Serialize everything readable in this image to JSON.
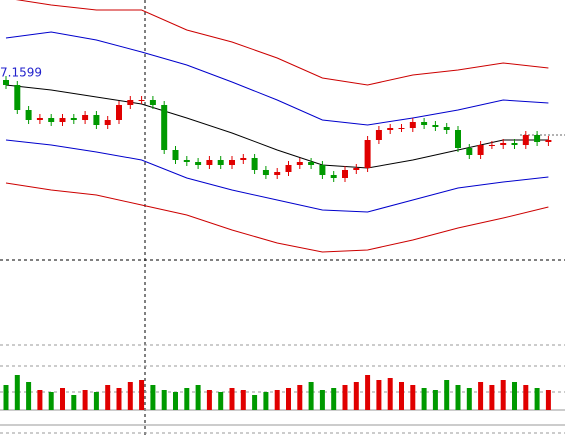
{
  "chart_data": {
    "type": "candlestick",
    "price_label": "7.1599",
    "up_color": "#e00000",
    "down_color": "#009900",
    "ylim": [
      6.9729,
      7.2329
    ],
    "open": [
      7.1529,
      7.1479,
      7.1229,
      7.1129,
      7.1149,
      7.1109,
      7.1149,
      7.1129,
      7.1179,
      7.1079,
      7.1129,
      7.1279,
      7.1329,
      7.1329,
      7.1279,
      7.0829,
      7.0729,
      7.0709,
      7.0679,
      7.0729,
      7.0679,
      7.0729,
      7.0749,
      7.0629,
      7.0579,
      7.0609,
      7.0679,
      7.0709,
      7.0679,
      7.0579,
      7.0549,
      7.0629,
      7.0649,
      7.0929,
      7.1029,
      7.1049,
      7.1049,
      7.1109,
      7.1079,
      7.1059,
      7.1029,
      7.0849,
      7.0779,
      7.0879,
      7.0879,
      7.0899,
      7.0879,
      7.0979,
      7.0909
    ],
    "high": [
      7.1569,
      7.1519,
      7.1269,
      7.1189,
      7.1189,
      7.1189,
      7.1189,
      7.1219,
      7.1219,
      7.1169,
      7.1319,
      7.1369,
      7.1369,
      7.1369,
      7.1319,
      7.0869,
      7.0769,
      7.0749,
      7.0769,
      7.0769,
      7.0769,
      7.0789,
      7.0789,
      7.0669,
      7.0649,
      7.0719,
      7.0749,
      7.0749,
      7.0719,
      7.0619,
      7.0669,
      7.0689,
      7.0969,
      7.1069,
      7.1089,
      7.1089,
      7.1149,
      7.1149,
      7.1119,
      7.1099,
      7.1069,
      7.0889,
      7.0919,
      7.0919,
      7.0939,
      7.0939,
      7.1019,
      7.1019,
      7.0969
    ],
    "low": [
      7.1439,
      7.1189,
      7.1089,
      7.1089,
      7.1069,
      7.1069,
      7.1089,
      7.1089,
      7.1039,
      7.1039,
      7.1089,
      7.1239,
      7.1289,
      7.1239,
      7.0789,
      7.0689,
      7.0669,
      7.0639,
      7.0639,
      7.0639,
      7.0639,
      7.0689,
      7.0589,
      7.0539,
      7.0539,
      7.0569,
      7.0639,
      7.0639,
      7.0539,
      7.0509,
      7.0509,
      7.0589,
      7.0609,
      7.0889,
      7.0989,
      7.1009,
      7.1009,
      7.1039,
      7.1019,
      7.0989,
      7.0809,
      7.0739,
      7.0739,
      7.0839,
      7.0839,
      7.0839,
      7.0839,
      7.0869,
      7.0869
    ],
    "close": [
      7.1479,
      7.1229,
      7.1129,
      7.1149,
      7.1109,
      7.1149,
      7.1129,
      7.1179,
      7.1079,
      7.1129,
      7.1279,
      7.1329,
      7.1329,
      7.1279,
      7.0829,
      7.0729,
      7.0709,
      7.0679,
      7.0729,
      7.0679,
      7.0729,
      7.0749,
      7.0629,
      7.0579,
      7.0609,
      7.0679,
      7.0709,
      7.0679,
      7.0579,
      7.0549,
      7.0629,
      7.0649,
      7.0929,
      7.1029,
      7.1049,
      7.1049,
      7.1109,
      7.1079,
      7.1059,
      7.1029,
      7.0849,
      7.0779,
      7.0879,
      7.0879,
      7.0899,
      7.0879,
      7.0979,
      7.0909,
      7.0929
    ],
    "lines": {
      "x": [
        0,
        4,
        8,
        12,
        16,
        20,
        24,
        28,
        32,
        36,
        40,
        44,
        48
      ],
      "series": [
        {
          "color": "#cc0000",
          "values": [
            7.2349,
            7.2279,
            7.2229,
            7.2229,
            7.2029,
            7.1909,
            7.1749,
            7.1549,
            7.1479,
            7.1579,
            7.1629,
            7.1699,
            7.1649
          ]
        },
        {
          "color": "#0000cc",
          "values": [
            7.1949,
            7.2009,
            7.1929,
            7.1809,
            7.1679,
            7.1509,
            7.1329,
            7.1129,
            7.1079,
            7.1149,
            7.1229,
            7.1329,
            7.1299
          ]
        },
        {
          "color": "#000000",
          "values": [
            7.1479,
            7.1429,
            7.1359,
            7.1289,
            7.1149,
            7.0999,
            7.0829,
            7.0679,
            7.0649,
            7.0729,
            7.0829,
            7.0929,
            7.0929
          ]
        },
        {
          "color": "#0000cc",
          "values": [
            7.0929,
            7.0879,
            7.0809,
            7.0729,
            7.0549,
            7.0429,
            7.0329,
            7.0229,
            7.0209,
            7.0329,
            7.0449,
            7.0509,
            7.0559
          ]
        },
        {
          "color": "#cc0000",
          "values": [
            7.0499,
            7.0429,
            7.0379,
            7.0279,
            7.0179,
            7.0029,
            6.9899,
            6.9809,
            6.9829,
            6.9929,
            7.0049,
            7.0149,
            7.0259
          ]
        }
      ]
    },
    "volume": [
      25,
      35,
      28,
      20,
      18,
      22,
      15,
      20,
      18,
      25,
      22,
      28,
      30,
      25,
      20,
      18,
      22,
      25,
      20,
      18,
      22,
      20,
      15,
      18,
      20,
      22,
      25,
      28,
      20,
      22,
      25,
      28,
      35,
      30,
      32,
      28,
      25,
      22,
      20,
      30,
      25,
      22,
      28,
      25,
      30,
      28,
      25,
      22,
      20
    ],
    "volume_ylim": [
      0,
      65
    ]
  }
}
